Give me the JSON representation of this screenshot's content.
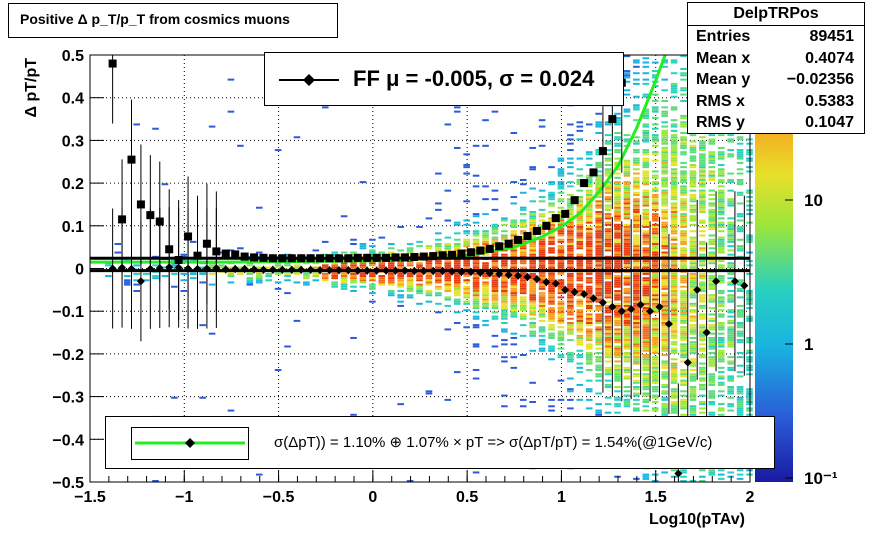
{
  "title": "Positive Δ p_T/p_T from cosmics muons",
  "stats": {
    "name": "DelpTRPos",
    "rows": [
      {
        "label": "Entries",
        "value": "89451"
      },
      {
        "label": "Mean x",
        "value": "0.4074"
      },
      {
        "label": "Mean y",
        "value": "−0.02356"
      },
      {
        "label": "RMS x",
        "value": "0.5383"
      },
      {
        "label": "RMS y",
        "value": "0.1047"
      }
    ]
  },
  "fit_legend": "FF μ = -0.005, σ =   0.024",
  "resolution_legend": "σ(ΔpT)) =  1.10% ⊕  1.07% × pT => σ(ΔpT/pT) =  1.54%(@1GeV/c)",
  "colors": {
    "fit_curve": "#22ee22",
    "markers": "#000000",
    "background": "#ffffff"
  },
  "chart_data": {
    "type": "heatmap",
    "title": "Positive Δ p_T/p_T from cosmics muons",
    "xlabel": "Log10(pTAv)",
    "ylabel": "Δ pT/pT",
    "xlim": [
      -1.5,
      2
    ],
    "ylim": [
      -0.5,
      0.5
    ],
    "x_ticks": [
      "−1.5",
      "−1",
      "−0.5",
      "0",
      "0.5",
      "1",
      "1.5",
      "2"
    ],
    "y_ticks": [
      "−0.5",
      "−0.4",
      "−0.3",
      "−0.2",
      "−0.1",
      "0",
      "0.1",
      "0.2",
      "0.3",
      "0.4",
      "0.5"
    ],
    "colorbar": {
      "scale": "log",
      "ticks": [
        "10⁻¹",
        "1",
        "10"
      ]
    },
    "grid": true,
    "series": [
      {
        "name": "sigma",
        "marker": "square",
        "x": [
          -1.38,
          -1.33,
          -1.28,
          -1.23,
          -1.18,
          -1.13,
          -1.08,
          -1.03,
          -0.98,
          -0.93,
          -0.88,
          -0.83,
          -0.78,
          -0.73,
          -0.68,
          -0.63,
          -0.58,
          -0.53,
          -0.48,
          -0.43,
          -0.38,
          -0.33,
          -0.28,
          -0.23,
          -0.18,
          -0.13,
          -0.08,
          -0.03,
          0.02,
          0.07,
          0.12,
          0.17,
          0.22,
          0.27,
          0.32,
          0.37,
          0.42,
          0.47,
          0.52,
          0.57,
          0.62,
          0.67,
          0.72,
          0.77,
          0.82,
          0.87,
          0.92,
          0.97,
          1.02,
          1.07,
          1.12,
          1.17,
          1.22,
          1.27,
          1.32
        ],
        "y": [
          0.48,
          0.115,
          0.255,
          0.15,
          0.125,
          0.11,
          0.045,
          0.02,
          0.075,
          0.03,
          0.058,
          0.04,
          0.035,
          0.033,
          0.028,
          0.026,
          0.025,
          0.024,
          0.024,
          0.024,
          0.024,
          0.024,
          0.024,
          0.024,
          0.024,
          0.024,
          0.025,
          0.025,
          0.025,
          0.025,
          0.026,
          0.026,
          0.027,
          0.028,
          0.029,
          0.031,
          0.032,
          0.035,
          0.038,
          0.042,
          0.046,
          0.052,
          0.058,
          0.067,
          0.076,
          0.088,
          0.1,
          0.118,
          0.128,
          0.16,
          0.2,
          0.225,
          0.275,
          0.35,
          0.435
        ]
      },
      {
        "name": "mean",
        "marker": "diamond",
        "x": [
          -1.38,
          -1.33,
          -1.28,
          -1.23,
          -1.18,
          -1.13,
          -1.08,
          -1.03,
          -0.98,
          -0.93,
          -0.88,
          -0.83,
          -0.78,
          -0.73,
          -0.68,
          -0.63,
          -0.58,
          -0.53,
          -0.48,
          -0.43,
          -0.38,
          -0.33,
          -0.28,
          -0.23,
          -0.18,
          -0.13,
          -0.08,
          -0.03,
          0.02,
          0.07,
          0.12,
          0.17,
          0.22,
          0.27,
          0.32,
          0.37,
          0.42,
          0.47,
          0.52,
          0.57,
          0.62,
          0.67,
          0.72,
          0.77,
          0.82,
          0.87,
          0.92,
          0.97,
          1.02,
          1.07,
          1.12,
          1.17,
          1.22,
          1.27,
          1.32,
          1.37,
          1.42,
          1.47,
          1.52,
          1.57,
          1.62,
          1.67,
          1.72,
          1.77,
          1.82,
          1.92,
          1.97
        ],
        "y": [
          0,
          0.002,
          -0.001,
          -0.03,
          -0.001,
          0.001,
          0.003,
          0.002,
          0,
          -0.001,
          0,
          0.001,
          -0.002,
          -0.001,
          -0.001,
          -0.002,
          -0.003,
          -0.003,
          -0.003,
          -0.003,
          -0.003,
          -0.003,
          -0.004,
          -0.004,
          -0.004,
          -0.004,
          -0.005,
          -0.005,
          -0.005,
          -0.005,
          -0.005,
          -0.005,
          -0.006,
          -0.006,
          -0.006,
          -0.006,
          -0.007,
          -0.008,
          -0.008,
          -0.01,
          -0.011,
          -0.013,
          -0.015,
          -0.017,
          -0.02,
          -0.025,
          -0.032,
          -0.035,
          -0.05,
          -0.055,
          -0.06,
          -0.07,
          -0.08,
          -0.09,
          -0.1,
          -0.095,
          -0.085,
          -0.1,
          -0.09,
          -0.13,
          -0.48,
          -0.22,
          -0.05,
          -0.15,
          -0.03,
          -0.03,
          -0.04
        ]
      },
      {
        "name": "sigma fit",
        "type": "line",
        "x": [
          -1.5,
          -1.25,
          -1,
          -0.75,
          -0.5,
          -0.25,
          0,
          0.25,
          0.5,
          0.75,
          0.9,
          1,
          1.1,
          1.2,
          1.3,
          1.4,
          1.5,
          1.55
        ],
        "y": [
          0.015,
          0.015,
          0.015,
          0.015,
          0.016,
          0.017,
          0.018,
          0.022,
          0.03,
          0.05,
          0.075,
          0.098,
          0.13,
          0.18,
          0.24,
          0.33,
          0.44,
          0.5
        ]
      },
      {
        "name": "mean fit",
        "type": "line",
        "x": [
          -1.5,
          2
        ],
        "y": [
          -0.005,
          -0.005
        ]
      },
      {
        "name": "sigma const",
        "type": "line",
        "x": [
          -1.5,
          2
        ],
        "y": [
          0.024,
          0.024
        ]
      }
    ]
  }
}
